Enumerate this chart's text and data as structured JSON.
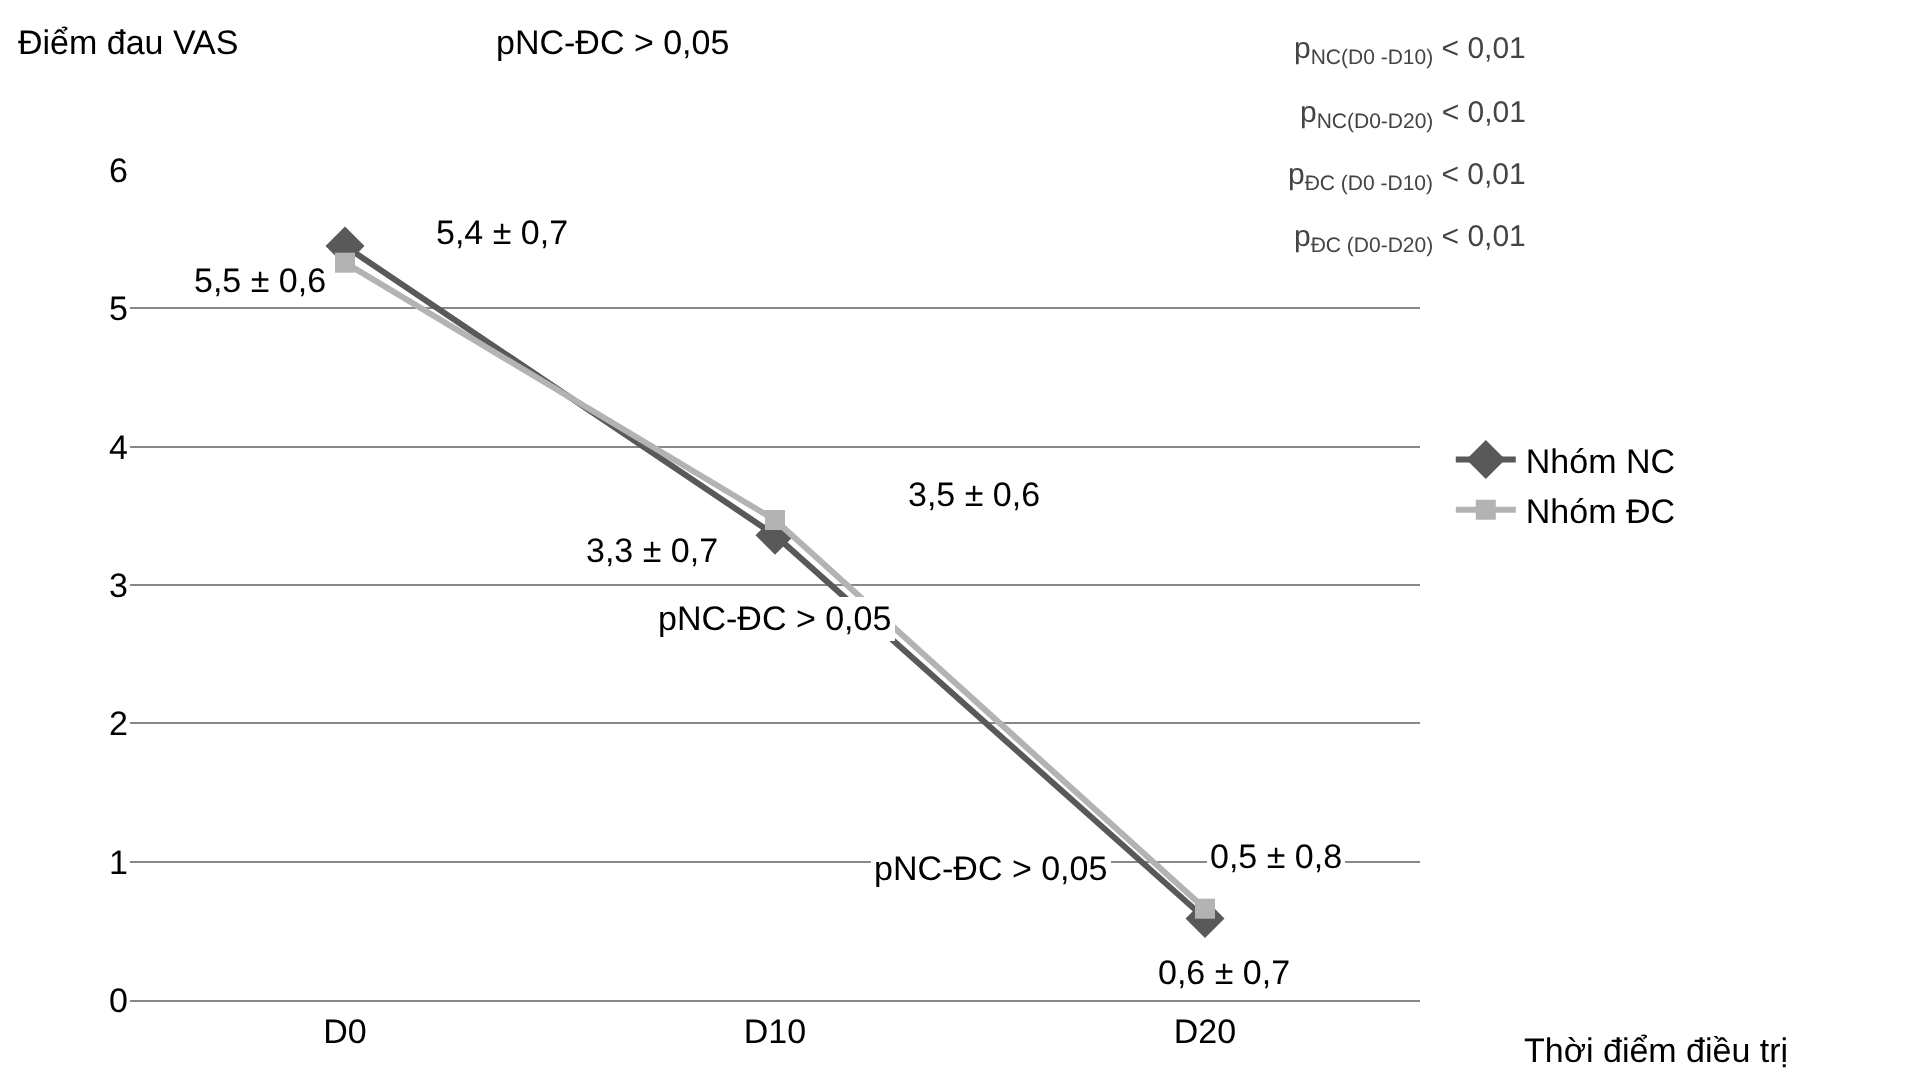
{
  "chart_data": {
    "type": "line",
    "xlabel": "Thời điểm điều trị",
    "ylabel": "Điểm đau VAS",
    "categories": [
      "D0",
      "D10",
      "D20"
    ],
    "series": [
      {
        "name": "Nhóm NC",
        "color": "#595959",
        "values": [
          5.45,
          3.36,
          0.59
        ],
        "marker": "diamond"
      },
      {
        "name": "Nhóm ĐC",
        "color": "#b3b3b3",
        "values": [
          5.33,
          3.47,
          0.66
        ],
        "marker": "square"
      }
    ],
    "ylim": [
      0,
      6
    ],
    "yticks": [
      0,
      1,
      2,
      3,
      4,
      5,
      6
    ],
    "grid": "y",
    "legend": "right",
    "annotations": [
      "pNC-ĐC > 0,05",
      "5,4 ± 0,7",
      "5,5 ± 0,6",
      "3,3 ± 0,7",
      "3,5 ± 0,6",
      "pNC-ĐC > 0,05",
      "pNC-ĐC > 0,05",
      "0,5 ± 0,8",
      "0,6 ± 0,7",
      "p$_{NC(D0 -D10)}$ < 0,01",
      "p$_{NC(D0-D20)}$ < 0,01",
      "p$_{ĐC (D0 -D10)}$ < 0,01",
      "p$_{ĐC (D0-D20)}$ < 0,01"
    ]
  }
}
